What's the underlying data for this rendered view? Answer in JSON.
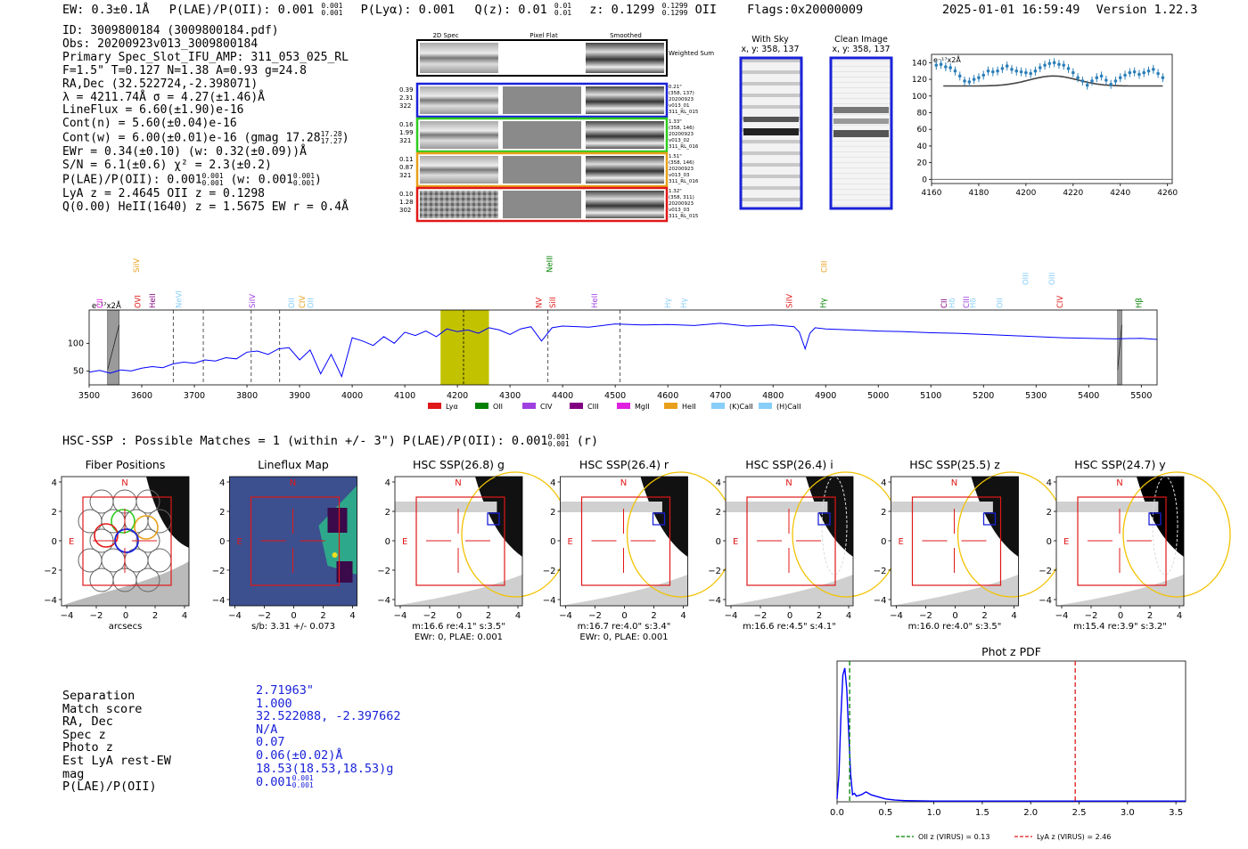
{
  "header": {
    "ew": "EW: 0.3±0.1Å",
    "plae": "P(LAE)/P(OII): 0.001",
    "plae_hi": "0.001",
    "plae_lo": "0.001",
    "plya": "P(Lyα): 0.001",
    "qz": "Q(z): 0.01",
    "qz_hi": "0.01",
    "qz_lo": "0.01",
    "z": "z: 0.1299",
    "z_hi": "0.1299",
    "z_lo": "0.1299",
    "z_line": "OII",
    "flags": "Flags:0x20000009",
    "timestamp": "2025-01-01 16:59:49",
    "version": "Version 1.22.3"
  },
  "info": {
    "id": "ID: 3009800184 (3009800184.pdf)",
    "obs": "Obs: 20200923v013_3009800184",
    "primary": "Primary Spec_Slot_IFU_AMP: 311_053_025_RL",
    "fit": "F=1.5\"  T=0.127  N=1.38  A=0.93  g=24.8",
    "radec": "RA,Dec (32.522724,-2.398071)",
    "lambda": "λ = 4211.74Å  σ = 4.27(±1.46)Å",
    "lineflux": "LineFlux = 6.60(±1.90)e-16",
    "contn": "Cont(n) = 5.60(±0.04)e-16",
    "contw": "Cont(w) = 6.00(±0.01)e-16 (gmag 17.28",
    "contw_hi": "17.28",
    "contw_lo": "17.27",
    "ewr": "EWr = 0.34(±0.10) (w: 0.32(±0.09))Å",
    "sn": "S/N = 6.1(±0.6)  χ² = 2.3(±0.2)",
    "plae": "P(LAE)/P(OII): 0.001",
    "plae_hi": "0.001",
    "plae_lo": "0.001",
    "plae_w": "(w: 0.001",
    "plae_w_hi": "0.001",
    "plae_w_lo": "0.001",
    "lya": "LyA z = 2.4645   OII z = 0.1298",
    "q": "Q(0.00) HeII(1640) z = 1.5675   EW r = 0.4Å"
  },
  "cutouts": {
    "col_2d": "2D Spec",
    "col_flat": "Pixel Flat",
    "col_smooth": "Smoothed",
    "weighted": "Weighted Sum",
    "rows": [
      {
        "left": [
          "0.39",
          "2.31",
          "322"
        ],
        "right": [
          "0.21\"",
          "(358, 137)",
          "20200923",
          "v013_01",
          "311_RL_015"
        ]
      },
      {
        "left": [
          "0.16",
          "1.99",
          "321"
        ],
        "right": [
          "1.33\"",
          "(358, 146)",
          "20200923",
          "v013_02",
          "311_RL_016"
        ]
      },
      {
        "left": [
          "0.11",
          "0.87",
          "321"
        ],
        "right": [
          "1.51\"",
          "(358, 146)",
          "20200923",
          "v013_03",
          "311_RL_016"
        ]
      },
      {
        "left": [
          "0.10",
          "1.28",
          "302"
        ],
        "right": [
          "1.32\"",
          "(358, 311)",
          "20200923",
          "v013_03",
          "311_RL_015"
        ]
      }
    ]
  },
  "sky": {
    "with_sky": "With Sky",
    "with_sky_xy": "x, y: 358, 137",
    "clean": "Clean Image",
    "clean_xy": "x, y: 358, 137"
  },
  "colors": {
    "row1": "#1a22d8",
    "row2": "#2ecc1e",
    "row3": "#e8a01a",
    "row4": "#e01818",
    "spectrum": "#0000ff",
    "highlight": "#c2c200",
    "errbar": "#2c7fb8"
  },
  "chart_data": [
    {
      "type": "scatter",
      "title": "",
      "ylabel_corner": "e⁻¹⁷x2Å",
      "xlim": [
        4160,
        4262
      ],
      "ylim": [
        -5,
        150
      ],
      "xticks": [
        "4160",
        "4180",
        "4200",
        "4220",
        "4240",
        "4260"
      ],
      "yticks": [
        "0",
        "20",
        "40",
        "60",
        "80",
        "100",
        "120",
        "140"
      ],
      "x": [
        4162,
        4164,
        4166,
        4168,
        4170,
        4172,
        4174,
        4176,
        4178,
        4180,
        4182,
        4184,
        4186,
        4188,
        4190,
        4192,
        4194,
        4196,
        4198,
        4200,
        4202,
        4204,
        4206,
        4208,
        4210,
        4212,
        4214,
        4216,
        4218,
        4220,
        4222,
        4224,
        4226,
        4228,
        4230,
        4232,
        4234,
        4236,
        4238,
        4240,
        4242,
        4244,
        4246,
        4248,
        4250,
        4252,
        4254,
        4256,
        4258
      ],
      "y": [
        137,
        138,
        135,
        134,
        130,
        124,
        118,
        117,
        120,
        122,
        125,
        130,
        129,
        130,
        133,
        136,
        132,
        130,
        129,
        128,
        127,
        130,
        134,
        137,
        139,
        140,
        138,
        137,
        133,
        128,
        122,
        118,
        113,
        118,
        122,
        124,
        119,
        114,
        118,
        122,
        125,
        128,
        129,
        126,
        128,
        130,
        132,
        127,
        122
      ],
      "model_base": 112,
      "model_peak": 124,
      "model_center": 4211.7,
      "model_sigma": 4.27
    },
    {
      "type": "line",
      "title": "",
      "ylabel_corner": "e⁻¹⁷x2Å",
      "xlim": [
        3500,
        5530
      ],
      "ylim": [
        25,
        160
      ],
      "xticks": [
        "3500",
        "3600",
        "3700",
        "3800",
        "3900",
        "4000",
        "4100",
        "4200",
        "4300",
        "4400",
        "4500",
        "4600",
        "4700",
        "4800",
        "4900",
        "5000",
        "5100",
        "5200",
        "5300",
        "5400",
        "5500"
      ],
      "yticks": [
        "50",
        "100"
      ],
      "highlight": [
        4168,
        4260
      ],
      "line_center": 4211.7,
      "dashed": [
        3660,
        3717,
        3808,
        3862,
        4372,
        4509
      ],
      "masked": [
        [
          3535,
          3557
        ],
        [
          5455,
          5463
        ]
      ],
      "x": [
        3500,
        3520,
        3540,
        3560,
        3580,
        3600,
        3620,
        3640,
        3660,
        3680,
        3700,
        3720,
        3740,
        3760,
        3780,
        3800,
        3820,
        3840,
        3860,
        3880,
        3900,
        3920,
        3940,
        3960,
        3980,
        4000,
        4020,
        4040,
        4060,
        4080,
        4100,
        4120,
        4140,
        4160,
        4180,
        4200,
        4220,
        4240,
        4260,
        4280,
        4300,
        4320,
        4340,
        4360,
        4380,
        4400,
        4450,
        4500,
        4550,
        4600,
        4650,
        4700,
        4750,
        4800,
        4840,
        4850,
        4861,
        4870,
        4880,
        4900,
        4950,
        5000,
        5050,
        5100,
        5150,
        5200,
        5250,
        5300,
        5350,
        5400,
        5450,
        5500,
        5530
      ],
      "y": [
        48,
        51,
        46,
        52,
        50,
        55,
        58,
        56,
        63,
        66,
        64,
        70,
        68,
        74,
        72,
        84,
        86,
        80,
        90,
        92,
        70,
        88,
        45,
        80,
        40,
        110,
        104,
        96,
        112,
        100,
        120,
        114,
        122,
        112,
        126,
        121,
        124,
        118,
        128,
        124,
        116,
        126,
        130,
        104,
        128,
        131,
        129,
        135,
        133,
        134,
        132,
        136,
        131,
        133,
        130,
        120,
        90,
        118,
        128,
        126,
        124,
        122,
        121,
        119,
        118,
        116,
        114,
        112,
        110,
        109,
        108,
        109,
        107
      ]
    },
    {
      "type": "line",
      "title": "Phot z PDF",
      "xlim": [
        0,
        3.6
      ],
      "ylim": [
        0,
        1
      ],
      "xticks": [
        "0.0",
        "0.5",
        "1.0",
        "1.5",
        "2.0",
        "2.5",
        "3.0",
        "3.5"
      ],
      "x": [
        0.0,
        0.02,
        0.04,
        0.06,
        0.08,
        0.1,
        0.12,
        0.14,
        0.16,
        0.18,
        0.2,
        0.25,
        0.3,
        0.35,
        0.4,
        0.5,
        0.6,
        0.7,
        1.0,
        2.0,
        3.6
      ],
      "y": [
        0.02,
        0.2,
        0.6,
        0.9,
        0.95,
        0.8,
        0.5,
        0.2,
        0.05,
        0.06,
        0.04,
        0.05,
        0.07,
        0.05,
        0.04,
        0.02,
        0.012,
        0.008,
        0.005,
        0.005,
        0.005
      ],
      "vline_oii": 0.13,
      "vline_lya": 2.46,
      "legend": [
        "OII z (VIRUS) = 0.13",
        "LyA z (VIRUS) = 2.46"
      ]
    }
  ],
  "spectrum_lines": [
    {
      "name": "CII",
      "w": 3520,
      "color": "#e020e0",
      "tier": 0
    },
    {
      "name": "SiIV",
      "w": 3590,
      "color": "#e8a01a",
      "tier": 2
    },
    {
      "name": "OVI",
      "w": 3592,
      "color": "#e01818",
      "tier": 0
    },
    {
      "name": "HeII",
      "w": 3620,
      "color": "#800080",
      "tier": 0
    },
    {
      "name": "NeVI",
      "w": 3670,
      "color": "#87cefa",
      "tier": 0
    },
    {
      "name": "SiIV",
      "w": 3810,
      "color": "#a040e0",
      "tier": 0
    },
    {
      "name": "OII",
      "w": 3885,
      "color": "#87cefa",
      "tier": 0
    },
    {
      "name": "CIV",
      "w": 3905,
      "color": "#e8a01a",
      "tier": 0
    },
    {
      "name": "OII",
      "w": 3921,
      "color": "#87cefa",
      "tier": 0
    },
    {
      "name": "NeIII",
      "w": 4375,
      "color": "#008000",
      "tier": 2
    },
    {
      "name": "NV",
      "w": 4355,
      "color": "#e01818",
      "tier": 0
    },
    {
      "name": "SiII",
      "w": 4381,
      "color": "#e01818",
      "tier": 0
    },
    {
      "name": "HeII",
      "w": 4461,
      "color": "#a040e0",
      "tier": 0
    },
    {
      "name": "Hγ",
      "w": 4600,
      "color": "#87cefa",
      "tier": 0
    },
    {
      "name": "Hγ",
      "w": 4630,
      "color": "#87cefa",
      "tier": 0
    },
    {
      "name": "SiIV",
      "w": 4831,
      "color": "#e01818",
      "tier": 0
    },
    {
      "name": "CIII",
      "w": 4897,
      "color": "#e8a01a",
      "tier": 2
    },
    {
      "name": "Hγ",
      "w": 4895,
      "color": "#008000",
      "tier": 0
    },
    {
      "name": "CII",
      "w": 5125,
      "color": "#800080",
      "tier": 0
    },
    {
      "name": "Hδ",
      "w": 5140,
      "color": "#87cefa",
      "tier": 0
    },
    {
      "name": "CIII",
      "w": 5167,
      "color": "#a040e0",
      "tier": 0
    },
    {
      "name": "Hδ",
      "w": 5180,
      "color": "#87cefa",
      "tier": 0
    },
    {
      "name": "OII",
      "w": 5231,
      "color": "#87cefa",
      "tier": 0
    },
    {
      "name": "OIII",
      "w": 5280,
      "color": "#87cefa",
      "tier": 1
    },
    {
      "name": "OIII",
      "w": 5330,
      "color": "#87cefa",
      "tier": 1
    },
    {
      "name": "CIV",
      "w": 5345,
      "color": "#e01818",
      "tier": 0
    },
    {
      "name": "Hβ",
      "w": 5495,
      "color": "#008000",
      "tier": 0
    }
  ],
  "spectrum_legend": [
    {
      "label": "Lyα",
      "color": "#e01818"
    },
    {
      "label": "OII",
      "color": "#008000"
    },
    {
      "label": "CIV",
      "color": "#a040e0"
    },
    {
      "label": "CIII",
      "color": "#800080"
    },
    {
      "label": "MgII",
      "color": "#e020e0"
    },
    {
      "label": "HeII",
      "color": "#e8a01a"
    },
    {
      "label": "(K)CaII",
      "color": "#87cefa"
    },
    {
      "label": "(H)CaII",
      "color": "#87cefa"
    }
  ],
  "hsc": {
    "title": "HSC-SSP : Possible Matches = 1 (within +/- 3\")  P(LAE)/P(OII): 0.001",
    "title_hi": "0.001",
    "title_lo": "0.001",
    "title_suffix": "(r)",
    "panels": [
      {
        "title": "Fiber Positions",
        "north": "N",
        "east": "E",
        "cap1": "arcsecs",
        "cap2": ""
      },
      {
        "title": "Lineflux Map",
        "north": "N",
        "east": "E",
        "cap1": "s/b: 3.31 +/- 0.073",
        "cap2": ""
      },
      {
        "title": "HSC SSP(26.8) g",
        "north": "N",
        "east": "E",
        "cap1": "m:16.6  re:4.1\"   s:3.5\"",
        "cap2": "EWr: 0, PLAE: 0.001"
      },
      {
        "title": "HSC SSP(26.4) r",
        "north": "N",
        "east": "E",
        "cap1": "m:16.7  re:4.0\"   s:3.4\"",
        "cap2": "EWr: 0, PLAE: 0.001"
      },
      {
        "title": "HSC SSP(26.4) i",
        "north": "N",
        "east": "E",
        "cap1": "m:16.6  re:4.5\"   s:4.1\"",
        "cap2": ""
      },
      {
        "title": "HSC SSP(25.5) z",
        "north": "N",
        "east": "E",
        "cap1": "m:16.0  re:4.0\"   s:3.5\"",
        "cap2": ""
      },
      {
        "title": "HSC SSP(24.7) y",
        "north": "N",
        "east": "E",
        "cap1": "m:15.4  re:3.9\"   s:3.2\"",
        "cap2": ""
      }
    ],
    "ticks": [
      "4",
      "2",
      "0",
      "−2",
      "−4"
    ],
    "xticks": [
      "−4",
      "−2",
      "0",
      "2",
      "4"
    ]
  },
  "details": {
    "labels": [
      "Separation",
      "Match score",
      "RA, Dec",
      "Spec z",
      "Photo z",
      "Est LyA rest-EW",
      "mag",
      "P(LAE)/P(OII)"
    ],
    "values": [
      "2.71963\"",
      "1.000",
      "32.522088, -2.397662",
      "N/A",
      "0.07",
      "0.06(±0.02)Å",
      "18.53(18.53,18.53)g",
      "0.001"
    ],
    "plae_hi": "0.001",
    "plae_lo": "0.001"
  }
}
